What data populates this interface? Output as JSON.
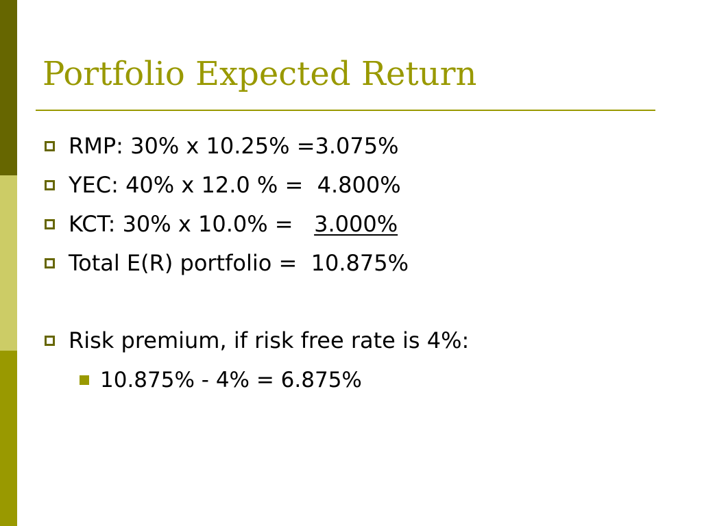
{
  "theme": {
    "title_color": "#999900",
    "rule_color": "#999900",
    "hollow_bullet_color": "#666600",
    "solid_bullet_color": "#999900",
    "side_bar_colors": [
      "#666600",
      "#CCCC66",
      "#999900"
    ]
  },
  "slide": {
    "title": "Portfolio Expected Return",
    "bullets": [
      {
        "text": "RMP: 30% x 10.25% =3.075%"
      },
      {
        "text": "YEC: 40% x 12.0 % =  4.800%"
      },
      {
        "text": "KCT: 30% x 10.0% =   ",
        "underlined_text": "3.000%"
      },
      {
        "text": "Total E(R) portfolio =  10.875%"
      },
      {
        "text": "Risk premium, if risk free rate is 4%:"
      }
    ],
    "sub_bullets": [
      {
        "text": "10.875% - 4% = 6.875%"
      }
    ]
  }
}
